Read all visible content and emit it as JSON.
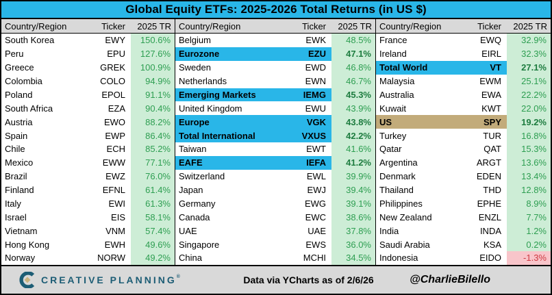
{
  "chart_data": {
    "type": "table",
    "title": "Global Equity ETFs: 2025-2026 Total Returns (in US $)",
    "columns": [
      "Country/Region",
      "Ticker",
      "2025 TR"
    ],
    "sections": [
      {
        "rows": [
          {
            "country": "South Korea",
            "ticker": "EWY",
            "tr": "150.6%"
          },
          {
            "country": "Peru",
            "ticker": "EPU",
            "tr": "127.6%"
          },
          {
            "country": "Greece",
            "ticker": "GREK",
            "tr": "100.9%"
          },
          {
            "country": "Colombia",
            "ticker": "COLO",
            "tr": "94.9%"
          },
          {
            "country": "Poland",
            "ticker": "EPOL",
            "tr": "91.1%"
          },
          {
            "country": "South Africa",
            "ticker": "EZA",
            "tr": "90.4%"
          },
          {
            "country": "Austria",
            "ticker": "EWO",
            "tr": "88.2%"
          },
          {
            "country": "Spain",
            "ticker": "EWP",
            "tr": "86.4%"
          },
          {
            "country": "Chile",
            "ticker": "ECH",
            "tr": "85.2%"
          },
          {
            "country": "Mexico",
            "ticker": "EWW",
            "tr": "77.1%"
          },
          {
            "country": "Brazil",
            "ticker": "EWZ",
            "tr": "76.0%"
          },
          {
            "country": "Finland",
            "ticker": "EFNL",
            "tr": "61.4%"
          },
          {
            "country": "Italy",
            "ticker": "EWI",
            "tr": "61.3%"
          },
          {
            "country": "Israel",
            "ticker": "EIS",
            "tr": "58.1%"
          },
          {
            "country": "Vietnam",
            "ticker": "VNM",
            "tr": "57.4%"
          },
          {
            "country": "Hong Kong",
            "ticker": "EWH",
            "tr": "49.6%"
          },
          {
            "country": "Norway",
            "ticker": "NORW",
            "tr": "49.2%"
          }
        ]
      },
      {
        "rows": [
          {
            "country": "Belgium",
            "ticker": "EWK",
            "tr": "48.5%"
          },
          {
            "country": "Eurozone",
            "ticker": "EZU",
            "tr": "47.1%",
            "highlight": "blue"
          },
          {
            "country": "Sweden",
            "ticker": "EWD",
            "tr": "46.8%"
          },
          {
            "country": "Netherlands",
            "ticker": "EWN",
            "tr": "46.7%"
          },
          {
            "country": "Emerging Markets",
            "ticker": "IEMG",
            "tr": "45.3%",
            "highlight": "blue"
          },
          {
            "country": "United Kingdom",
            "ticker": "EWU",
            "tr": "43.9%"
          },
          {
            "country": "Europe",
            "ticker": "VGK",
            "tr": "43.8%",
            "highlight": "blue"
          },
          {
            "country": "Total International",
            "ticker": "VXUS",
            "tr": "42.2%",
            "highlight": "blue"
          },
          {
            "country": "Taiwan",
            "ticker": "EWT",
            "tr": "41.6%"
          },
          {
            "country": "EAFE",
            "ticker": "IEFA",
            "tr": "41.2%",
            "highlight": "blue"
          },
          {
            "country": "Switzerland",
            "ticker": "EWL",
            "tr": "39.9%"
          },
          {
            "country": "Japan",
            "ticker": "EWJ",
            "tr": "39.4%"
          },
          {
            "country": "Germany",
            "ticker": "EWG",
            "tr": "39.1%"
          },
          {
            "country": "Canada",
            "ticker": "EWC",
            "tr": "38.6%"
          },
          {
            "country": "UAE",
            "ticker": "UAE",
            "tr": "37.8%"
          },
          {
            "country": "Singapore",
            "ticker": "EWS",
            "tr": "36.0%"
          },
          {
            "country": "China",
            "ticker": "MCHI",
            "tr": "34.5%"
          }
        ]
      },
      {
        "rows": [
          {
            "country": "France",
            "ticker": "EWQ",
            "tr": "32.9%"
          },
          {
            "country": "Ireland",
            "ticker": "EIRL",
            "tr": "32.3%"
          },
          {
            "country": "Total World",
            "ticker": "VT",
            "tr": "27.1%",
            "highlight": "blue"
          },
          {
            "country": "Malaysia",
            "ticker": "EWM",
            "tr": "25.1%"
          },
          {
            "country": "Australia",
            "ticker": "EWA",
            "tr": "22.2%"
          },
          {
            "country": "Kuwait",
            "ticker": "KWT",
            "tr": "22.0%"
          },
          {
            "country": "US",
            "ticker": "SPY",
            "tr": "19.2%",
            "highlight": "tan"
          },
          {
            "country": "Turkey",
            "ticker": "TUR",
            "tr": "16.8%"
          },
          {
            "country": "Qatar",
            "ticker": "QAT",
            "tr": "15.3%"
          },
          {
            "country": "Argentina",
            "ticker": "ARGT",
            "tr": "13.6%"
          },
          {
            "country": "Denmark",
            "ticker": "EDEN",
            "tr": "13.4%"
          },
          {
            "country": "Thailand",
            "ticker": "THD",
            "tr": "12.8%"
          },
          {
            "country": "Philippines",
            "ticker": "EPHE",
            "tr": "8.9%"
          },
          {
            "country": "New Zealand",
            "ticker": "ENZL",
            "tr": "7.7%"
          },
          {
            "country": "India",
            "ticker": "INDA",
            "tr": "1.2%"
          },
          {
            "country": "Saudi Arabia",
            "ticker": "KSA",
            "tr": "0.2%"
          },
          {
            "country": "Indonesia",
            "ticker": "EIDO",
            "tr": "-1.3%"
          }
        ]
      }
    ]
  },
  "footer": {
    "brand": "CREATIVE PLANNING",
    "brand_mark": "®",
    "note": "Data via YCharts as of 2/6/26",
    "handle": "@CharlieBilello"
  },
  "colors": {
    "accent_cyan": "#29b6e8",
    "highlight_tan": "#c2ab7a",
    "positive_bg": "#cdedd6",
    "positive_text": "#2d9e51",
    "negative_bg": "#f8c5ca",
    "negative_text": "#ce3a41",
    "header_gray": "#d9d9d9",
    "brand_teal": "#1d5d75",
    "brand_gold": "#c9b37f"
  }
}
